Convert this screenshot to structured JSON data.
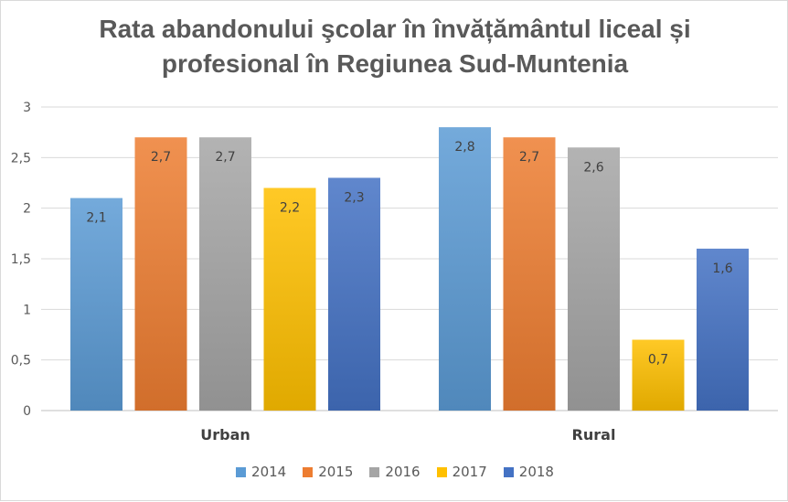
{
  "chart_data": {
    "type": "bar",
    "title_lines": [
      "Rata abandonului şcolar în învățământul liceal și",
      "profesional în Regiunea Sud-Muntenia"
    ],
    "categories": [
      "Urban",
      "Rural"
    ],
    "series": [
      {
        "name": "2014",
        "values": [
          2.1,
          2.8
        ],
        "labels": [
          "2,1",
          "2,8"
        ],
        "color": "#5b9bd5"
      },
      {
        "name": "2015",
        "values": [
          2.7,
          2.7
        ],
        "labels": [
          "2,7",
          "2,7"
        ],
        "color": "#ed7d31"
      },
      {
        "name": "2016",
        "values": [
          2.7,
          2.6
        ],
        "labels": [
          "2,7",
          "2,6"
        ],
        "color": "#a5a5a5"
      },
      {
        "name": "2017",
        "values": [
          2.2,
          0.7
        ],
        "labels": [
          "2,2",
          "0,7"
        ],
        "color": "#ffc000"
      },
      {
        "name": "2018",
        "values": [
          2.3,
          1.6
        ],
        "labels": [
          "2,3",
          "1,6"
        ],
        "color": "#4472c4"
      }
    ],
    "ylim": [
      0,
      3
    ],
    "yticks": [
      0,
      0.5,
      1,
      1.5,
      2,
      2.5,
      3
    ],
    "ytick_labels": [
      "0",
      "0,5",
      "1",
      "1,5",
      "2",
      "2,5",
      "3"
    ],
    "grid": true,
    "legend_position": "bottom"
  }
}
